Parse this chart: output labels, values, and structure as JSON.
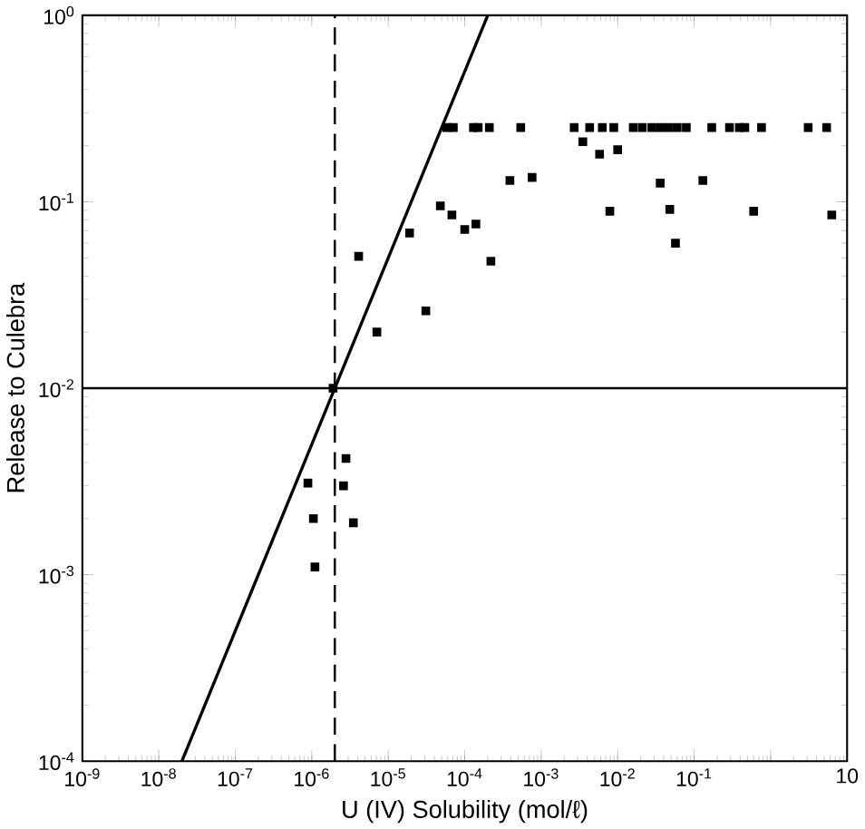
{
  "chart_data": {
    "type": "scatter",
    "xlabel": "U (IV) Solubility (mol/ℓ)",
    "ylabel": "Release to Culebra",
    "log": "xy",
    "marker": "square",
    "xlim": [
      1e-09,
      10
    ],
    "ylim": [
      0.0001,
      1
    ],
    "xticks": [
      {
        "value": 1e-09,
        "label": "10$^{-9}$"
      },
      {
        "value": 1e-08,
        "label": "10$^{-8}$"
      },
      {
        "value": 1e-07,
        "label": "10$^{-7}$"
      },
      {
        "value": 1e-06,
        "label": "10$^{-6}$"
      },
      {
        "value": 1e-05,
        "label": "10$^{-5}$"
      },
      {
        "value": 0.0001,
        "label": "10$^{-4}$"
      },
      {
        "value": 0.001,
        "label": "10$^{-3}$"
      },
      {
        "value": 0.01,
        "label": "10$^{-2}$"
      },
      {
        "value": 0.1,
        "label": "10$^{-1}$"
      },
      {
        "value": 1,
        "label": null
      },
      {
        "value": 10,
        "label": "10"
      }
    ],
    "yticks": [
      {
        "value": 0.0001,
        "label": "10$^{-4}$"
      },
      {
        "value": 0.001,
        "label": "10$^{-3}$"
      },
      {
        "value": 0.01,
        "label": "10$^{-2}$"
      },
      {
        "value": 0.1,
        "label": "10$^{-1}$"
      },
      {
        "value": 1,
        "label": "10$^{0}$"
      }
    ],
    "ref_lines": [
      {
        "axis": "y",
        "value": 0.01,
        "color": "#000000",
        "line_style": "solid"
      },
      {
        "axis": "x",
        "value": 2e-06,
        "color": "#000000",
        "line_style": "dashed"
      }
    ],
    "series": [
      {
        "type": "scatter",
        "color": "#000000",
        "x": [
          4.1e-06,
          7.1e-06,
          3.1e-05,
          1.9e-05,
          4.8e-05,
          6.8e-05,
          0.0001,
          0.00014,
          0.00022,
          0.00039,
          0.00076,
          5.8e-05,
          7.1e-05,
          0.00013,
          0.00015,
          0.00021,
          0.00054,
          0.0027,
          0.0043,
          0.0063,
          0.0089,
          0.016,
          0.021,
          0.028,
          0.036,
          0.046,
          0.06,
          0.079,
          0.17,
          0.29,
          0.39,
          0.46,
          0.76,
          3.1,
          5.4,
          0.0035,
          0.0058,
          0.01,
          0.0079,
          0.036,
          0.048,
          0.057,
          0.13,
          0.6,
          6.3,
          1.9e-06,
          2.8e-06,
          2.6e-06,
          8.9e-07,
          1.05e-06,
          3.5e-06,
          1.1e-06
        ],
        "values": [
          0.051,
          0.02,
          0.026,
          0.068,
          0.095,
          0.085,
          0.071,
          0.076,
          0.048,
          0.13,
          0.135,
          0.25,
          0.25,
          0.25,
          0.25,
          0.25,
          0.25,
          0.25,
          0.25,
          0.25,
          0.25,
          0.25,
          0.25,
          0.25,
          0.25,
          0.25,
          0.25,
          0.25,
          0.25,
          0.25,
          0.25,
          0.25,
          0.25,
          0.25,
          0.25,
          0.21,
          0.18,
          0.19,
          0.089,
          0.126,
          0.091,
          0.06,
          0.13,
          0.089,
          0.085,
          0.01,
          0.0042,
          0.003,
          0.0031,
          0.002,
          0.0019,
          0.0011
        ]
      },
      {
        "type": "line",
        "color": "#000000",
        "line_style": "solid",
        "marker": "none",
        "x": [
          2e-08,
          0.0002
        ],
        "values": [
          0.0001,
          1
        ]
      }
    ]
  }
}
